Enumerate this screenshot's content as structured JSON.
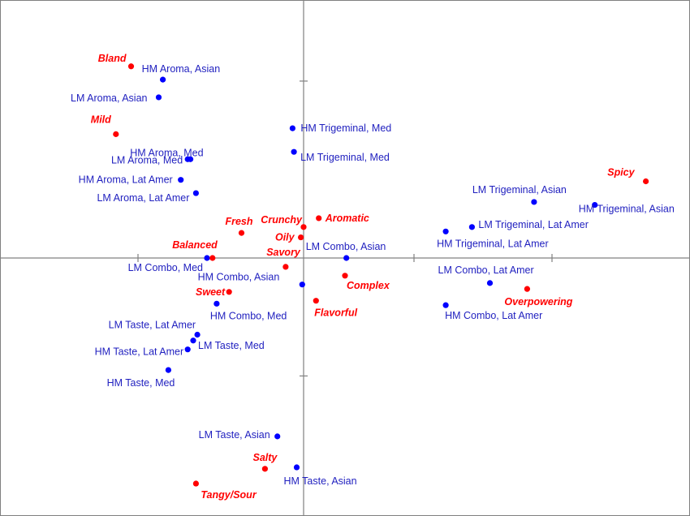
{
  "chart_data": {
    "type": "scatter",
    "title": "",
    "xlabel": "",
    "ylabel": "",
    "grid": false,
    "legend": "none",
    "colors": {
      "blue": "#0000ff",
      "red": "#ff0000",
      "axis": "#808080",
      "frame": "#808080"
    },
    "xlim": [
      -2.2,
      2.8
    ],
    "ylim": [
      -1.75,
      1.75
    ],
    "x_ticks": [
      -1.2,
      0.8,
      1.8
    ],
    "y_ticks": [
      1.2,
      -0.8
    ],
    "series": [
      {
        "marker_color": "#0000ff",
        "points": [
          {
            "label": "HM Aroma, Asian",
            "x": -1.02,
            "y": 1.21
          },
          {
            "label": "LM Aroma, Asian",
            "x": -1.05,
            "y": 1.09
          },
          {
            "label": "HM Trigeminal, Med",
            "x": -0.08,
            "y": 0.88
          },
          {
            "label": "LM Trigeminal, Med",
            "x": -0.07,
            "y": 0.72
          },
          {
            "label": "HM Aroma, Med",
            "x": -0.82,
            "y": 0.67
          },
          {
            "label": "LM Aroma, Med",
            "x": -0.84,
            "y": 0.67
          },
          {
            "label": "HM Aroma, Lat Amer",
            "x": -0.89,
            "y": 0.53
          },
          {
            "label": "LM Aroma, Lat Amer",
            "x": -0.78,
            "y": 0.44
          },
          {
            "label": "LM Trigeminal, Asian",
            "x": 1.67,
            "y": 0.38
          },
          {
            "label": "HM Trigeminal, Asian",
            "x": 2.11,
            "y": 0.36
          },
          {
            "label": "LM Trigeminal, Lat Amer",
            "x": 1.22,
            "y": 0.21
          },
          {
            "label": "HM Trigeminal, Lat Amer",
            "x": 1.03,
            "y": 0.18
          },
          {
            "label": "LM Combo, Asian",
            "x": 0.31,
            "y": 0.0
          },
          {
            "label": "LM Combo, Med",
            "x": -0.7,
            "y": 0.0
          },
          {
            "label": "HM Combo, Asian",
            "x": -0.01,
            "y": -0.18
          },
          {
            "label": "LM Combo, Lat Amer",
            "x": 1.35,
            "y": -0.17
          },
          {
            "label": "HM Combo, Lat Amer",
            "x": 1.03,
            "y": -0.32
          },
          {
            "label": "HM Combo, Med",
            "x": -0.63,
            "y": -0.31
          },
          {
            "label": "LM Taste, Lat Amer",
            "x": -0.77,
            "y": -0.52
          },
          {
            "label": "LM Taste, Med",
            "x": -0.8,
            "y": -0.56
          },
          {
            "label": "HM Taste, Lat Amer",
            "x": -0.84,
            "y": -0.62
          },
          {
            "label": "HM Taste, Med",
            "x": -0.98,
            "y": -0.76
          },
          {
            "label": "LM Taste, Asian",
            "x": -0.19,
            "y": -1.21
          },
          {
            "label": "HM Taste, Asian",
            "x": -0.05,
            "y": -1.42
          }
        ]
      },
      {
        "marker_color": "#ff0000",
        "points": [
          {
            "label": "Bland",
            "x": -1.25,
            "y": 1.3
          },
          {
            "label": "Mild",
            "x": -1.36,
            "y": 0.84
          },
          {
            "label": "Spicy",
            "x": 2.48,
            "y": 0.52
          },
          {
            "label": "Aromatic",
            "x": 0.11,
            "y": 0.27
          },
          {
            "label": "Crunchy",
            "x": 0.0,
            "y": 0.21
          },
          {
            "label": "Fresh",
            "x": -0.45,
            "y": 0.17
          },
          {
            "label": "Oily",
            "x": -0.02,
            "y": 0.14
          },
          {
            "label": "Balanced",
            "x": -0.66,
            "y": 0.0
          },
          {
            "label": "Savory",
            "x": -0.13,
            "y": -0.06
          },
          {
            "label": "Complex",
            "x": 0.3,
            "y": -0.12
          },
          {
            "label": "Sweet",
            "x": -0.54,
            "y": -0.23
          },
          {
            "label": "Overpowering",
            "x": 1.62,
            "y": -0.21
          },
          {
            "label": "Flavorful",
            "x": 0.09,
            "y": -0.29
          },
          {
            "label": "Salty",
            "x": -0.28,
            "y": -1.43
          },
          {
            "label": "Tangy/Sour",
            "x": -0.78,
            "y": -1.53
          }
        ]
      }
    ]
  }
}
